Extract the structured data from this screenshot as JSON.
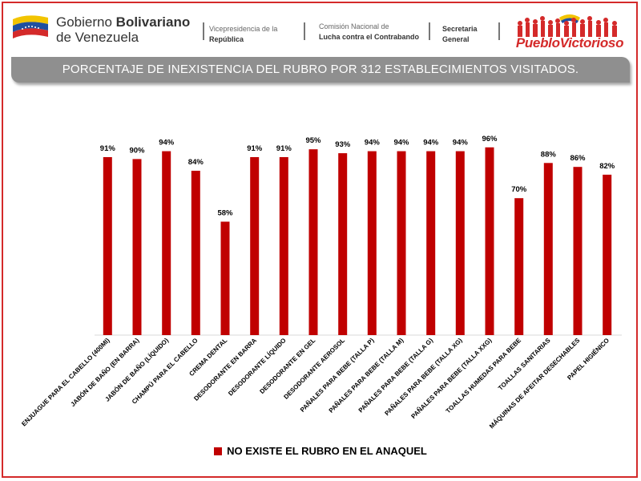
{
  "header": {
    "gov_line1_plain": "Gobierno ",
    "gov_line1_bold": "Bolivariano",
    "gov_line2": "de Venezuela",
    "vice_line1": "Vicepresidencia de la",
    "vice_line2": "República",
    "cncc_line1": "Comisión Nacional de",
    "cncc_line2": "Lucha contra el Contrabando",
    "sec_line1": "Secretaria",
    "sec_line2": "General",
    "logo_text": "PuebloVictorioso"
  },
  "banner": {
    "title": "PORCENTAJE DE INEXISTENCIA DEL RUBRO POR 312 ESTABLECIMIENTOS VISITADOS."
  },
  "chart_data": {
    "type": "bar",
    "title": "PORCENTAJE DE INEXISTENCIA DEL RUBRO POR 312 ESTABLECIMIENTOS VISITADOS.",
    "categories": [
      "ENJUAGUE PARA EL CABELLO (400Ml)",
      "JABÓN DE BAÑO (EN BARRA)",
      "JABÓN DE BAÑO (LÍQUIDO)",
      "CHAMPÚ PARA EL CABELLO",
      "CREMA DENTAL",
      "DESODORANTE EN BARRA",
      "DESODORANTE LÍQUIDO",
      "DESODORANTE EN GEL",
      "DESODORANTE AEROSOL",
      "PAÑALES PARA BEBE (TALLA P)",
      "PAÑALES PARA BEBE (TALLA M)",
      "PAÑALES PARA BEBE (TALLA G)",
      "PAÑALES PARA BEBE (TALLA XG)",
      "PAÑALES PARA BEBE (TALLA XXG)",
      "TOALLAS HUMEDAS PARA BEBE",
      "TOALLAS SANITARIAS",
      "MÁQUINAS DE AFEITAR DESECHABLES",
      "PAPEL HIGIÉNICO"
    ],
    "series": [
      {
        "name": "NO EXISTE EL RUBRO EN EL ANAQUEL",
        "values": [
          91,
          90,
          94,
          84,
          58,
          91,
          91,
          95,
          93,
          94,
          94,
          94,
          94,
          96,
          70,
          88,
          86,
          82
        ]
      }
    ],
    "value_labels": [
      "91%",
      "90%",
      "94%",
      "84%",
      "58%",
      "91%",
      "91%",
      "95%",
      "93%",
      "94%",
      "94%",
      "94%",
      "94%",
      "96%",
      "70%",
      "88%",
      "86%",
      "82%"
    ],
    "ylim": [
      0,
      100
    ],
    "grid": false,
    "legend_position": "bottom",
    "bar_color": "#c00000"
  },
  "legend": {
    "label": "NO EXISTE EL RUBRO EN EL ANAQUEL"
  }
}
